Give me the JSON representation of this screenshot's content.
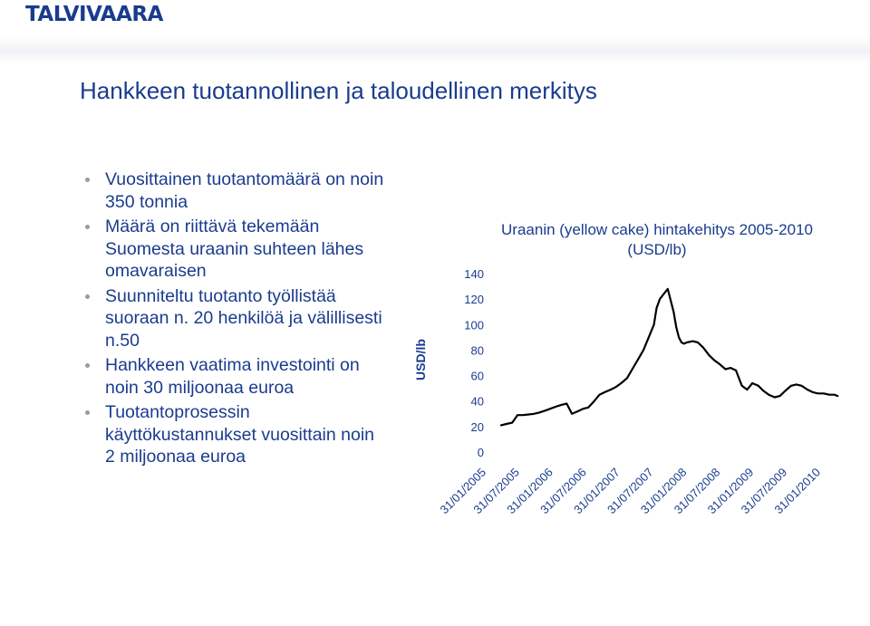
{
  "header": {
    "logo_text": "TALVIVAARA",
    "logo_color": "#1a3c8e"
  },
  "slide": {
    "title": "Hankkeen tuotannollinen ja taloudellinen merkitys",
    "title_color": "#1a3c8e",
    "text_color": "#1a3c8e",
    "bullets": [
      "Vuosittainen tuotantomäärä on noin 350 tonnia",
      "Määrä on riittävä tekemään Suomesta uraanin suhteen lähes omavaraisen",
      "Suunniteltu tuotanto työllistää suoraan n. 20 henkilöä ja välillisesti n.50",
      "Hankkeen vaatima investointi on noin 30 miljoonaa euroa",
      "Tuotantoprosessin käyttökustannukset vuosittain noin 2 miljoonaa euroa"
    ]
  },
  "chart_data": {
    "type": "line",
    "title": "Uraanin (yellow cake) hintakehitys 2005-2010 (USD/lb)",
    "xlabel": "",
    "ylabel": "USD/lb",
    "ylim": [
      0,
      140
    ],
    "yticks": [
      0,
      20,
      40,
      60,
      80,
      100,
      120,
      140
    ],
    "xticks": [
      "31/01/2005",
      "31/07/2005",
      "31/01/2006",
      "31/07/2006",
      "31/01/2007",
      "31/07/2007",
      "31/01/2008",
      "31/07/2008",
      "31/01/2009",
      "31/07/2009",
      "31/01/2010"
    ],
    "grid": false,
    "line_color": "#000000",
    "series": [
      {
        "x": [
          2005.04,
          2005.12,
          2005.21,
          2005.29,
          2005.37,
          2005.46,
          2005.54,
          2005.62,
          2005.71,
          2005.79,
          2005.87,
          2005.96,
          2006.04,
          2006.12,
          2006.21,
          2006.29,
          2006.37,
          2006.46,
          2006.54,
          2006.62,
          2006.71,
          2006.79,
          2006.87,
          2006.96,
          2007.04,
          2007.12,
          2007.21,
          2007.29,
          2007.37,
          2007.41,
          2007.46,
          2007.52,
          2007.58,
          2007.62,
          2007.67,
          2007.71,
          2007.75,
          2007.79,
          2007.83,
          2007.87,
          2007.96,
          2008.04,
          2008.12,
          2008.21,
          2008.29,
          2008.37,
          2008.46,
          2008.54,
          2008.62,
          2008.71,
          2008.79,
          2008.87,
          2008.96,
          2009.04,
          2009.12,
          2009.21,
          2009.29,
          2009.37,
          2009.46,
          2009.54,
          2009.62,
          2009.71,
          2009.79,
          2009.87,
          2009.96,
          2010.04,
          2010.12,
          2010.17
        ],
        "values": [
          21,
          22,
          23,
          29,
          29,
          29.5,
          30,
          31,
          32.5,
          34,
          35.5,
          37,
          38,
          30,
          32,
          34,
          35,
          40,
          45,
          47,
          49,
          51,
          54,
          58,
          65,
          72,
          80,
          90,
          100,
          113,
          120,
          124,
          128,
          120,
          110,
          98,
          90,
          86,
          85,
          86,
          87,
          86,
          82,
          76,
          72,
          69,
          65,
          66,
          64,
          52,
          49,
          54,
          52,
          48,
          45,
          43,
          44,
          48,
          52,
          53,
          52,
          49,
          47,
          46,
          46,
          45,
          45,
          44
        ]
      }
    ]
  }
}
